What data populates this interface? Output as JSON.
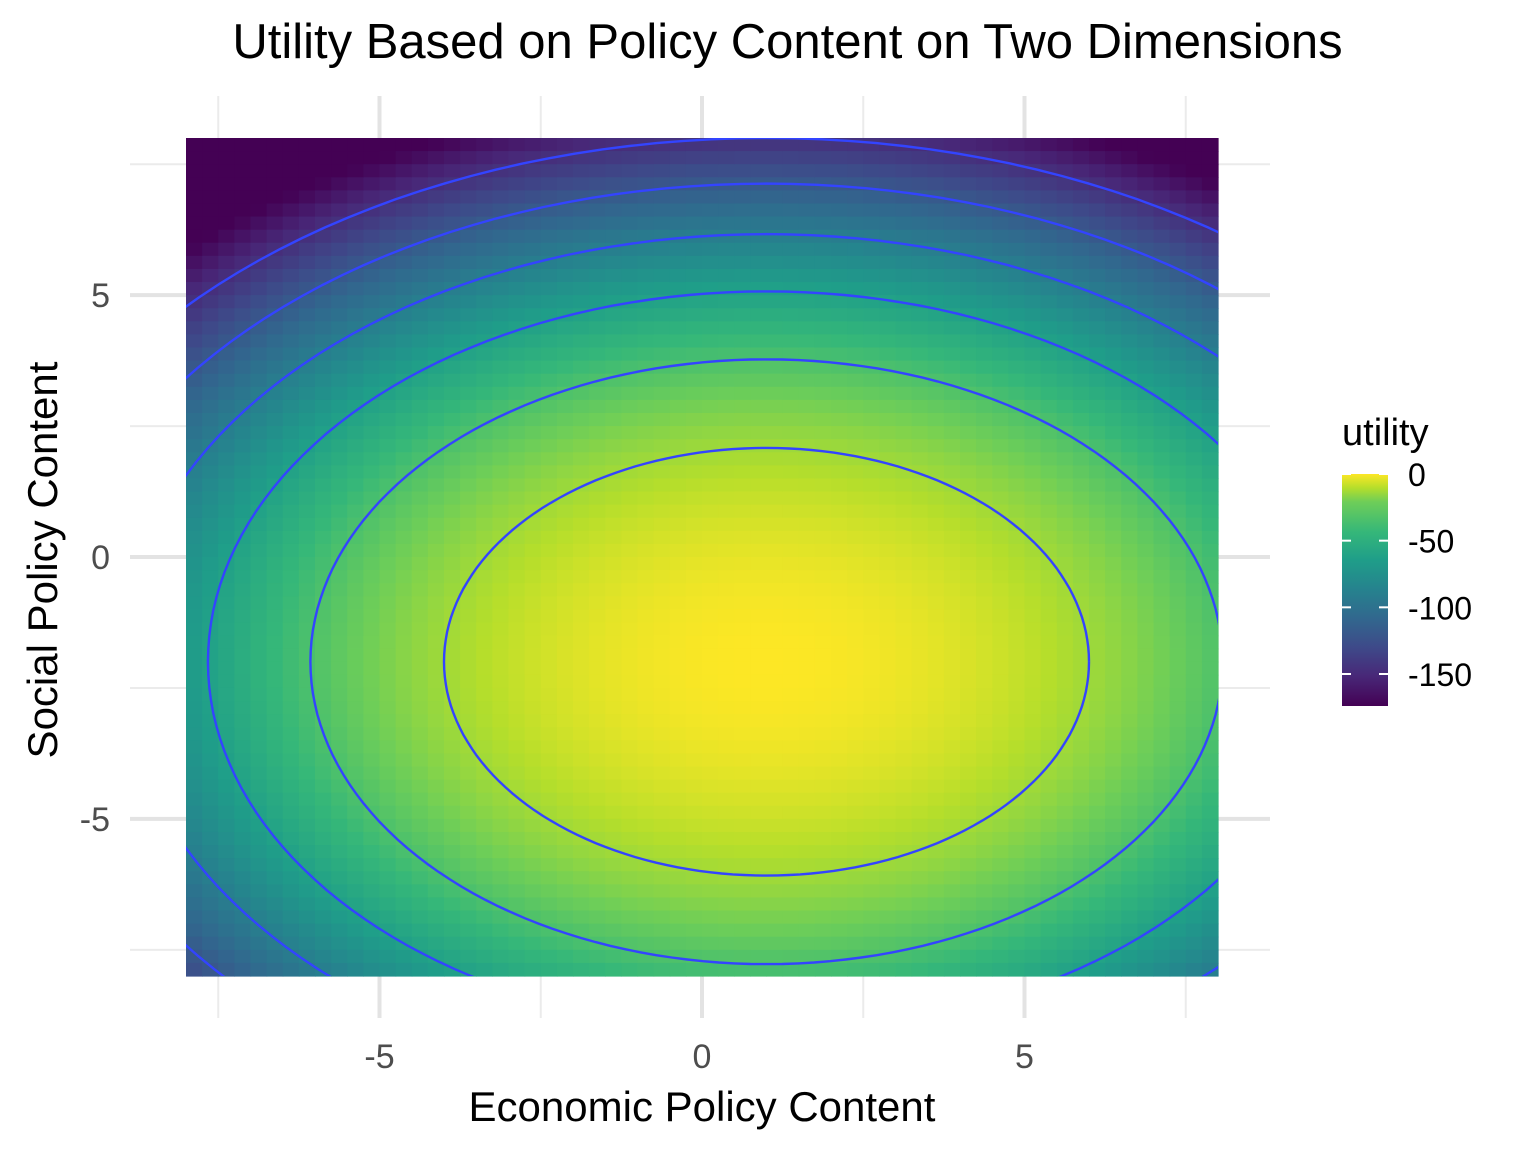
{
  "chart_data": {
    "type": "heatmap",
    "title": "Utility Based on Policy Content on Two Dimensions",
    "xlabel": "Economic Policy Content",
    "ylabel": "Social Policy Content",
    "xlim": [
      -8,
      8
    ],
    "ylim": [
      -8,
      8
    ],
    "x_ticks": [
      -5,
      0,
      5
    ],
    "y_ticks": [
      -5,
      0,
      5
    ],
    "x_tick_labels": [
      "-5",
      "0",
      "5"
    ],
    "y_tick_labels": [
      "-5",
      "0",
      "5"
    ],
    "grid": true,
    "utility_peak": {
      "x": 1,
      "y": -2
    },
    "utility_function": "-( (x-1)^2 + 1.5*(y+2)^2 )",
    "contour_levels": [
      -25,
      -50,
      -75,
      -100,
      -125,
      -150
    ],
    "contour_color": "#3344ff",
    "legend": {
      "title": "utility",
      "position": "right",
      "range": [
        -174,
        0
      ],
      "ticks": [
        0,
        -50,
        -100,
        -150
      ],
      "tick_labels": [
        "0",
        "-50",
        "-100",
        "-150"
      ],
      "colormap": "viridis"
    }
  }
}
